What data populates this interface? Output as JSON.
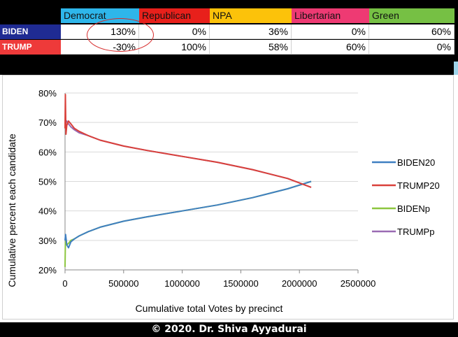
{
  "table": {
    "headers": [
      {
        "label": "Democrat",
        "color": "#2eb6ea"
      },
      {
        "label": "Republican",
        "color": "#e8201b"
      },
      {
        "label": "NPA",
        "color": "#fcc20a"
      },
      {
        "label": "Libertarian",
        "color": "#ee3a73"
      },
      {
        "label": "Green",
        "color": "#76c044"
      }
    ],
    "rows": [
      {
        "label": "BIDEN",
        "label_color": "#1f2b93",
        "values": [
          "130%",
          "0%",
          "36%",
          "0%",
          "60%"
        ]
      },
      {
        "label": "TRUMP",
        "label_color": "#ee3a3a",
        "values": [
          "-30%",
          "100%",
          "58%",
          "60%",
          "0%"
        ]
      }
    ]
  },
  "chart_data": {
    "type": "line",
    "xlabel": "Cumulative total Votes by precinct",
    "ylabel": "Cumulative percent each candidate",
    "xlim": [
      0,
      2500000
    ],
    "ylim": [
      20,
      80
    ],
    "x_ticks": [
      "0",
      "500000",
      "1000000",
      "1500000",
      "2000000",
      "2500000"
    ],
    "y_ticks": [
      "20%",
      "30%",
      "40%",
      "50%",
      "60%",
      "70%",
      "80%"
    ],
    "grid": "horizontal",
    "legend_position": "right",
    "series": [
      {
        "name": "BIDEN20",
        "color": "#3f7fc1",
        "x": [
          0,
          5000,
          15000,
          30000,
          50000,
          80000,
          120000,
          200000,
          300000,
          500000,
          700000,
          1000000,
          1300000,
          1600000,
          1900000,
          2100000
        ],
        "y": [
          30,
          32,
          28.5,
          27.5,
          29.5,
          30.5,
          31.5,
          33,
          34.5,
          36.5,
          38,
          40,
          42,
          44.5,
          47.5,
          50
        ]
      },
      {
        "name": "TRUMP20",
        "color": "#d9403a",
        "x": [
          0,
          3000,
          8000,
          15000,
          30000,
          50000,
          80000,
          120000,
          200000,
          300000,
          500000,
          700000,
          1000000,
          1300000,
          1600000,
          1900000,
          2100000
        ],
        "y": [
          68,
          79.5,
          66,
          69,
          70.5,
          69.5,
          68,
          67,
          65.5,
          64,
          62,
          60.5,
          58.5,
          56.5,
          54,
          51,
          48
        ]
      },
      {
        "name": "BIDENp",
        "color": "#8cc63f",
        "x": [
          0,
          3000,
          8000,
          15000,
          30000,
          50000,
          80000,
          120000,
          200000,
          300000,
          500000,
          700000,
          1000000,
          1300000,
          1600000,
          1900000,
          2100000
        ],
        "y": [
          21,
          29,
          30,
          28.5,
          29,
          30,
          30.5,
          31.5,
          33,
          34.5,
          36.5,
          38,
          40,
          42,
          44.5,
          47.5,
          50
        ]
      },
      {
        "name": "TRUMPp",
        "color": "#9a6bb3",
        "x": [
          0,
          5000,
          15000,
          30000,
          50000,
          80000,
          120000,
          200000,
          300000,
          500000,
          700000,
          1000000,
          1300000,
          1600000,
          1900000,
          2100000
        ],
        "y": [
          70,
          69.5,
          70.5,
          69.5,
          68.5,
          67.5,
          66.5,
          65.5,
          64,
          62,
          60.5,
          58.5,
          56.5,
          54,
          51,
          48
        ]
      }
    ]
  },
  "footer": {
    "text": "© 2020. Dr. Shiva Ayyadurai"
  }
}
